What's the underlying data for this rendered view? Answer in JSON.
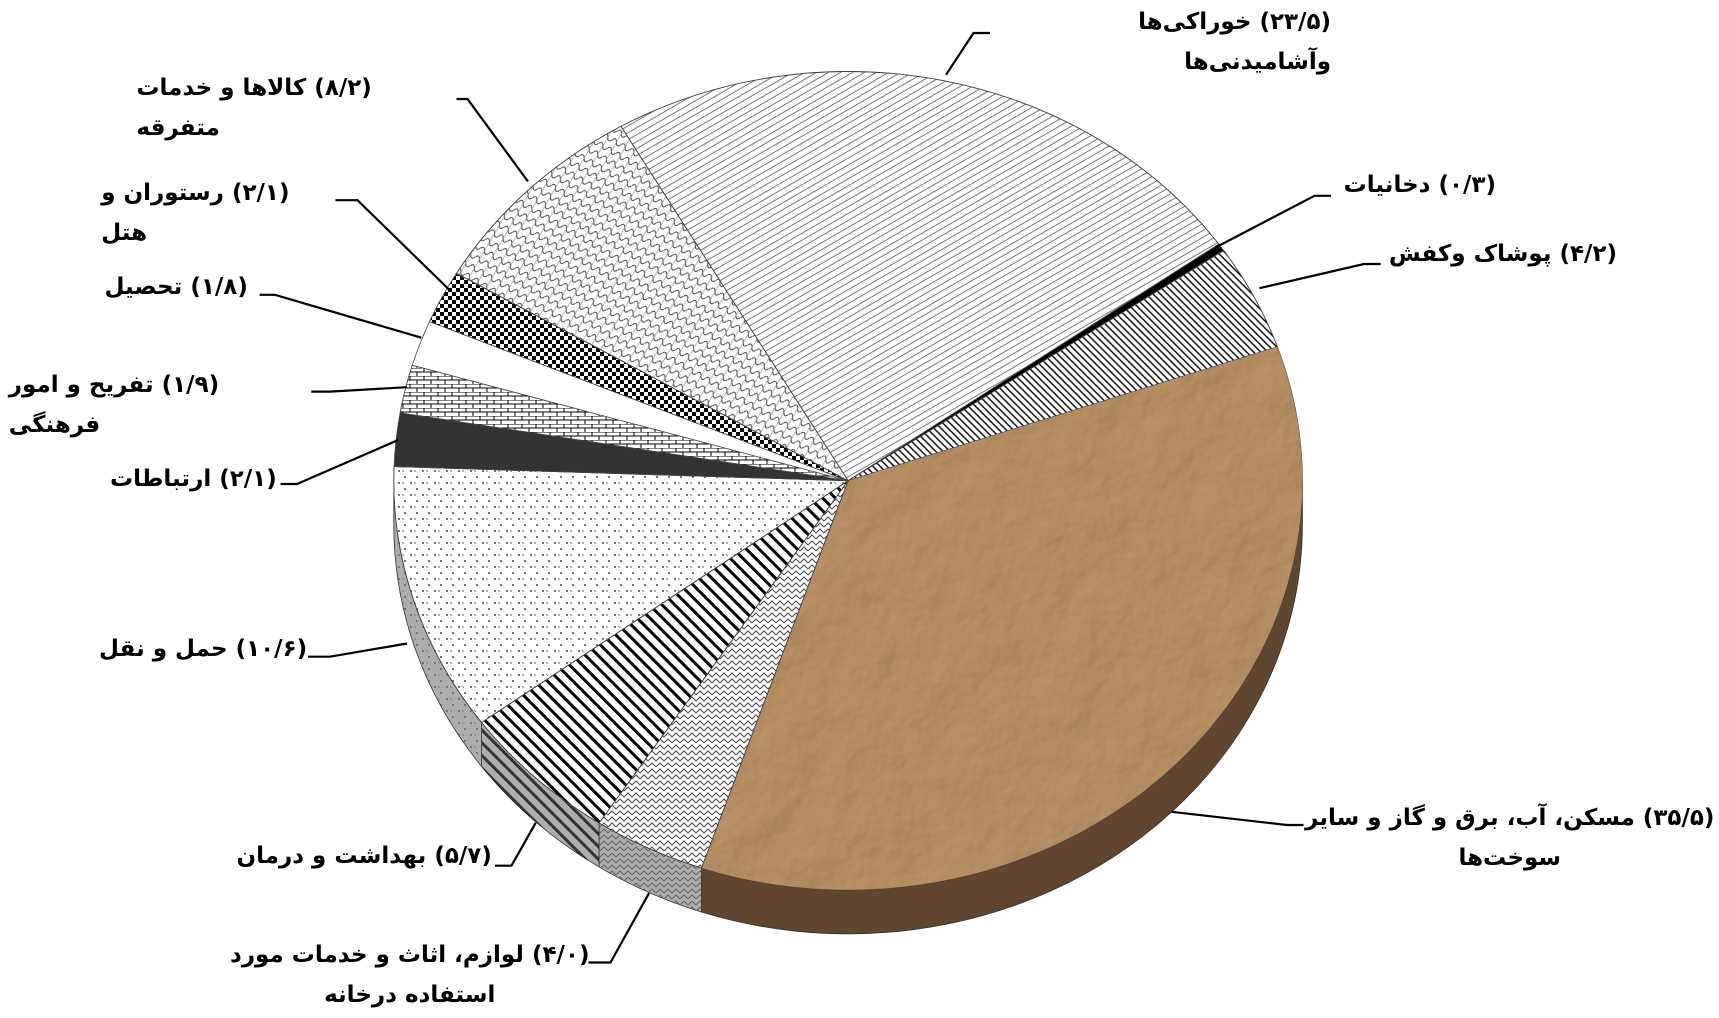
{
  "chart_data": {
    "type": "pie",
    "categories": [
      "خوراکی‌ها وآشامیدنی‌ها",
      "دخانیات",
      "پوشاک وکفش",
      "مسکن، آب، برق و گاز و سایر سوخت‌ها",
      "لوازم، اثاث و خدمات مورد استفاده درخانه",
      "بهداشت و درمان",
      "حمل و نقل",
      "ارتباطات",
      "تفریح و امور فرهنگی",
      "تحصیل",
      "رستوران و هتل",
      "کالاها و خدمات متفرقه"
    ],
    "values": [
      23.5,
      0.3,
      4.2,
      35.5,
      4.0,
      5.7,
      10.6,
      2.1,
      1.9,
      1.8,
      2.1,
      8.2
    ],
    "value_labels": [
      "(۲۳/۵)",
      "(۰/۳)",
      "(۴/۲)",
      "(۳۵/۵)",
      "(۴/۰)",
      "(۵/۷)",
      "(۱۰/۶)",
      "(۲/۱)",
      "(۱/۹)",
      "(۱/۸)",
      "(۲/۱)",
      "(۸/۲)"
    ],
    "colors": [
      "#ffffff",
      "#000000",
      "#ffffff",
      "#b48c62",
      "#ffffff",
      "#ffffff",
      "#ffffff",
      "#333333",
      "#ffffff",
      "#ffffff",
      "#ffffff",
      "#ffffff"
    ]
  }
}
